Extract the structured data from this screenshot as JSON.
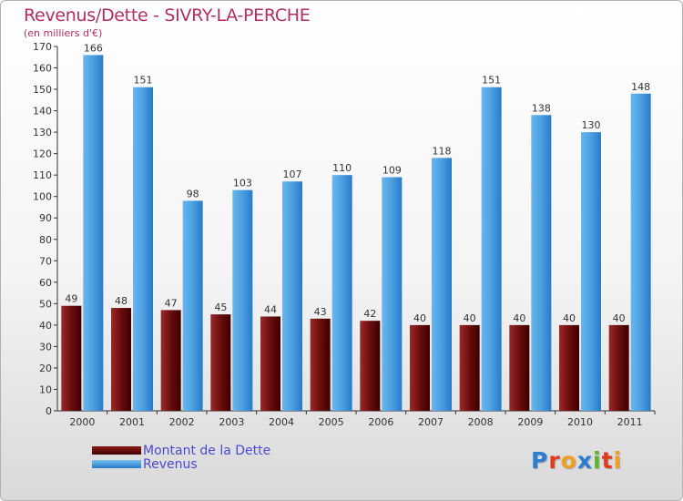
{
  "title": "Revenus/Dette - SIVRY-LA-PERCHE",
  "subtitle": "(en milliers d'€)",
  "colors": {
    "dette": "#6b0d0d",
    "revenus": "#4a9fdf",
    "title": "#b0305a",
    "legend_text": "#4a4ad0"
  },
  "logo": {
    "text": "Proxiti",
    "letters": [
      {
        "ch": "P",
        "color": "#2a7dd0"
      },
      {
        "ch": "r",
        "color": "#e23a1f"
      },
      {
        "ch": "o",
        "color": "#f0a020"
      },
      {
        "ch": "x",
        "color": "#2a7dd0"
      },
      {
        "ch": "i",
        "color": "#5ab82a"
      },
      {
        "ch": "t",
        "color": "#e23a1f"
      },
      {
        "ch": "i",
        "color": "#f0a020"
      }
    ]
  },
  "chart_data": {
    "type": "bar",
    "categories": [
      "2000",
      "2001",
      "2002",
      "2003",
      "2004",
      "2005",
      "2006",
      "2007",
      "2008",
      "2009",
      "2010",
      "2011"
    ],
    "series": [
      {
        "name": "Montant de la Dette",
        "values": [
          49,
          48,
          47,
          45,
          44,
          43,
          42,
          40,
          40,
          40,
          40,
          40
        ]
      },
      {
        "name": "Revenus",
        "values": [
          166,
          151,
          98,
          103,
          107,
          110,
          109,
          118,
          151,
          138,
          130,
          148
        ]
      }
    ],
    "yticks": [
      0,
      10,
      20,
      30,
      40,
      50,
      60,
      70,
      80,
      90,
      100,
      110,
      120,
      130,
      140,
      150,
      160,
      170
    ],
    "ylim": [
      0,
      170
    ],
    "grid": false,
    "legend_position": "bottom-left"
  }
}
